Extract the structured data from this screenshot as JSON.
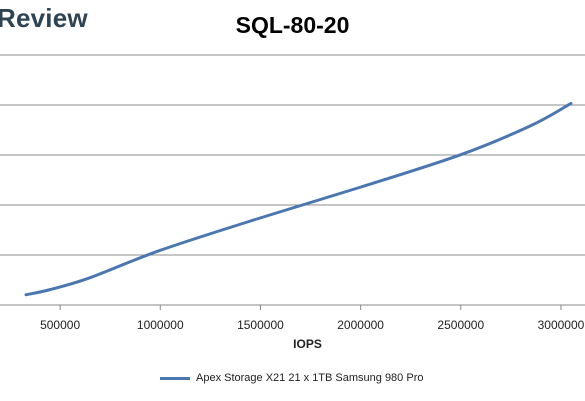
{
  "brand": {
    "text": "Review"
  },
  "chart_data": {
    "type": "line",
    "title": "SQL-80-20",
    "xlabel": "IOPS",
    "ylabel": "",
    "x_ticks": [
      500000,
      1000000,
      1500000,
      2000000,
      2500000,
      3000000
    ],
    "x_tick_labels": [
      "500000",
      "1000000",
      "1500000",
      "2000000",
      "2500000",
      "3000000"
    ],
    "grid": true,
    "legend_position": "bottom",
    "series": [
      {
        "name": "Apex Storage X21 21 x 1TB Samsung 980 Pro",
        "color": "#4a77b0",
        "x": [
          330000,
          450000,
          650000,
          1000000,
          1500000,
          2000000,
          2500000,
          2850000,
          3050000
        ],
        "y": [
          0.06,
          0.09,
          0.16,
          0.32,
          0.51,
          0.69,
          0.88,
          1.05,
          1.18
        ]
      }
    ]
  }
}
